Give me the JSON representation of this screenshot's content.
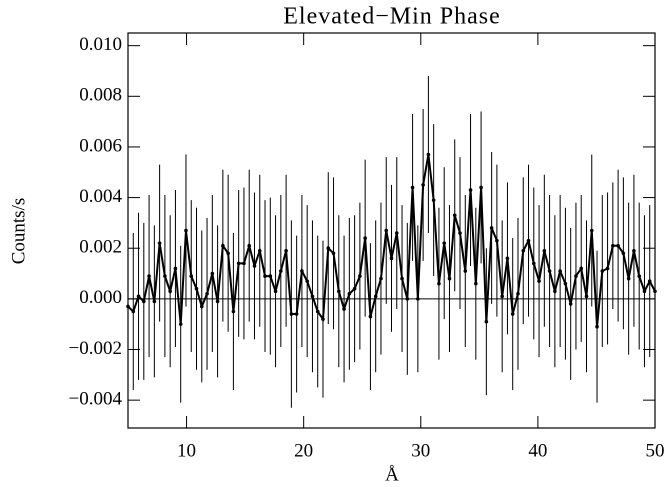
{
  "chart_data": {
    "type": "errorbar-line",
    "title": "Elevated−Min Phase",
    "x_label": "Å",
    "y_label": "Counts/s",
    "color": "#000000",
    "hline": 0,
    "xlim": [
      5,
      50
    ],
    "xticks": [
      10,
      20,
      30,
      40,
      50
    ],
    "ylim": [
      -0.0051,
      0.0105
    ],
    "yticks": [
      {
        "value": -0.004,
        "label": "−0.004"
      },
      {
        "value": -0.002,
        "label": "−0.002"
      },
      {
        "value": 0,
        "label": "0.000"
      },
      {
        "value": 0.002,
        "label": "0.002"
      },
      {
        "value": 0.004,
        "label": "0.004"
      },
      {
        "value": 0.006,
        "label": "0.006"
      },
      {
        "value": 0.008,
        "label": "0.008"
      },
      {
        "value": 0.01,
        "label": "0.010"
      }
    ],
    "x": [
      5.0,
      5.45,
      5.9,
      6.35,
      6.8,
      7.25,
      7.7,
      8.15,
      8.6,
      9.05,
      9.5,
      9.95,
      10.4,
      10.85,
      11.3,
      11.75,
      12.2,
      12.65,
      13.1,
      13.55,
      14.0,
      14.45,
      14.9,
      15.35,
      15.8,
      16.25,
      16.7,
      17.15,
      17.6,
      18.05,
      18.5,
      18.95,
      19.4,
      19.85,
      20.3,
      20.75,
      21.2,
      21.65,
      22.1,
      22.55,
      23.0,
      23.45,
      23.9,
      24.35,
      24.8,
      25.25,
      25.7,
      26.15,
      26.6,
      27.05,
      27.5,
      27.95,
      28.4,
      28.85,
      29.3,
      29.75,
      30.2,
      30.65,
      31.1,
      31.55,
      32.0,
      32.45,
      32.9,
      33.35,
      33.8,
      34.25,
      34.7,
      35.15,
      35.6,
      36.05,
      36.5,
      36.95,
      37.4,
      37.85,
      38.3,
      38.75,
      39.2,
      39.65,
      40.1,
      40.55,
      41.0,
      41.45,
      41.9,
      42.35,
      42.8,
      43.25,
      43.7,
      44.15,
      44.6,
      45.05,
      45.5,
      45.95,
      46.4,
      46.85,
      47.3,
      47.75,
      48.2,
      48.65,
      49.1,
      49.55,
      50.0
    ],
    "values": [
      -0.0003,
      -0.0005,
      0.0001,
      -0.0001,
      0.0009,
      -0.0001,
      0.0022,
      0.0009,
      0.0003,
      0.0012,
      -0.001,
      0.0027,
      0.0009,
      0.0004,
      -0.0003,
      0.0002,
      0.001,
      -0.0001,
      0.0021,
      0.0018,
      -0.0005,
      0.0014,
      0.0014,
      0.0021,
      0.0013,
      0.0019,
      0.0009,
      0.0009,
      0.0003,
      0.0011,
      0.0019,
      -0.0006,
      -0.0006,
      0.0011,
      0.0007,
      0.0001,
      -0.0005,
      -0.0008,
      0.002,
      0.0018,
      0.0003,
      -0.0004,
      0.0002,
      0.0004,
      0.0009,
      0.0024,
      -0.0007,
      0.0001,
      0.0008,
      0.0027,
      0.0016,
      0.0026,
      0.0008,
      0.0,
      0.0044,
      0.0,
      0.0045,
      0.0057,
      0.0039,
      0.0006,
      0.0022,
      0.0008,
      0.0033,
      0.0026,
      0.0011,
      0.0043,
      0.0006,
      0.0044,
      -0.0009,
      0.0028,
      0.0023,
      0.0001,
      0.0016,
      -0.0006,
      0.0002,
      0.0019,
      0.0023,
      0.0014,
      0.0007,
      0.0019,
      0.0011,
      0.0003,
      0.0011,
      0.0006,
      -0.0002,
      0.0009,
      0.0012,
      0.0001,
      0.0027,
      -0.0011,
      0.0011,
      0.0012,
      0.0021,
      0.0021,
      0.0018,
      0.0008,
      0.0019,
      0.0009,
      0.0003,
      0.0007,
      0.0003
    ],
    "errors": [
      0.0032,
      0.0031,
      0.0033,
      0.0031,
      0.0032,
      0.003,
      0.0031,
      0.0032,
      0.003,
      0.0031,
      0.0031,
      0.003,
      0.003,
      0.0032,
      0.003,
      0.003,
      0.0031,
      0.003,
      0.003,
      0.0031,
      0.0031,
      0.0029,
      0.003,
      0.003,
      0.0029,
      0.003,
      0.003,
      0.0031,
      0.003,
      0.003,
      0.003,
      0.0037,
      0.0031,
      0.003,
      0.003,
      0.003,
      0.003,
      0.0031,
      0.003,
      0.003,
      0.003,
      0.0029,
      0.003,
      0.0029,
      0.0029,
      0.0031,
      0.0029,
      0.003,
      0.003,
      0.0029,
      0.0029,
      0.003,
      0.0029,
      0.003,
      0.0029,
      0.0029,
      0.003,
      0.0031,
      0.003,
      0.003,
      0.003,
      0.0029,
      0.003,
      0.003,
      0.003,
      0.003,
      0.003,
      0.003,
      0.0029,
      0.003,
      0.003,
      0.003,
      0.003,
      0.003,
      0.003,
      0.0029,
      0.003,
      0.003,
      0.003,
      0.003,
      0.003,
      0.003,
      0.003,
      0.003,
      0.003,
      0.0029,
      0.0029,
      0.003,
      0.003,
      0.003,
      0.003,
      0.003,
      0.0025,
      0.003,
      0.003,
      0.003,
      0.003,
      0.0029,
      0.003,
      0.003,
      0.003
    ]
  }
}
